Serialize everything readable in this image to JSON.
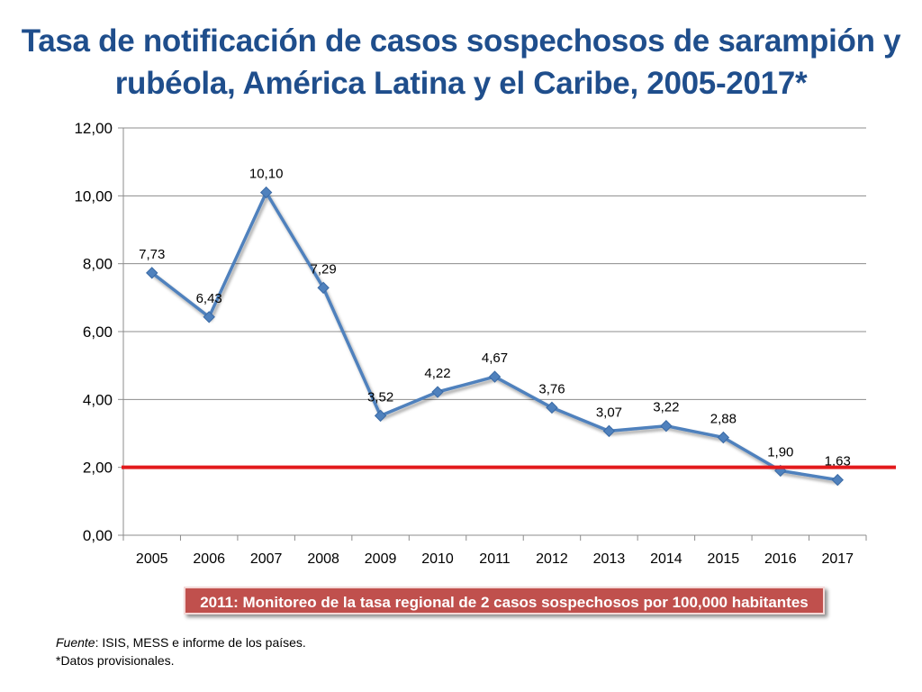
{
  "slide": {
    "title": "Tasa de notificación de casos sospechosos de sarampión y rubéola, América Latina y el Caribe, 2005-2017*",
    "note_banner": "2011: Monitoreo de la tasa regional de 2 casos  sospechosos por 100,000 habitantes",
    "footer": {
      "source_label": "Fuente",
      "source_text": ":  ISIS, MESS e informe de los países.",
      "provisional": "*Datos provisionales."
    }
  },
  "chart_data": {
    "type": "line",
    "title": "Tasa de notificación de casos sospechosos de sarampión y rubéola, América Latina y el Caribe, 2005-2017*",
    "xlabel": "",
    "ylabel": "",
    "categories": [
      "2005",
      "2006",
      "2007",
      "2008",
      "2009",
      "2010",
      "2011",
      "2012",
      "2013",
      "2014",
      "2015",
      "2016",
      "2017"
    ],
    "series": [
      {
        "values": [
          7.73,
          6.43,
          10.1,
          7.29,
          3.52,
          4.22,
          4.67,
          3.76,
          3.07,
          3.22,
          2.88,
          1.9,
          1.63
        ],
        "labels": [
          "7,73",
          "6,43",
          "10,10",
          "7,29",
          "3,52",
          "4,22",
          "4,67",
          "3,76",
          "3,07",
          "3,22",
          "2,88",
          "1,90",
          "1,63"
        ],
        "color": "#4f81bd"
      }
    ],
    "ylim": [
      0,
      12
    ],
    "yticks": [
      0,
      2,
      4,
      6,
      8,
      10,
      12
    ],
    "ytick_labels": [
      "0,00",
      "2,00",
      "4,00",
      "6,00",
      "8,00",
      "10,00",
      "12,00"
    ],
    "grid": true,
    "reference_line": {
      "value": 2,
      "color": "#e31a1c"
    },
    "legend": "none"
  }
}
